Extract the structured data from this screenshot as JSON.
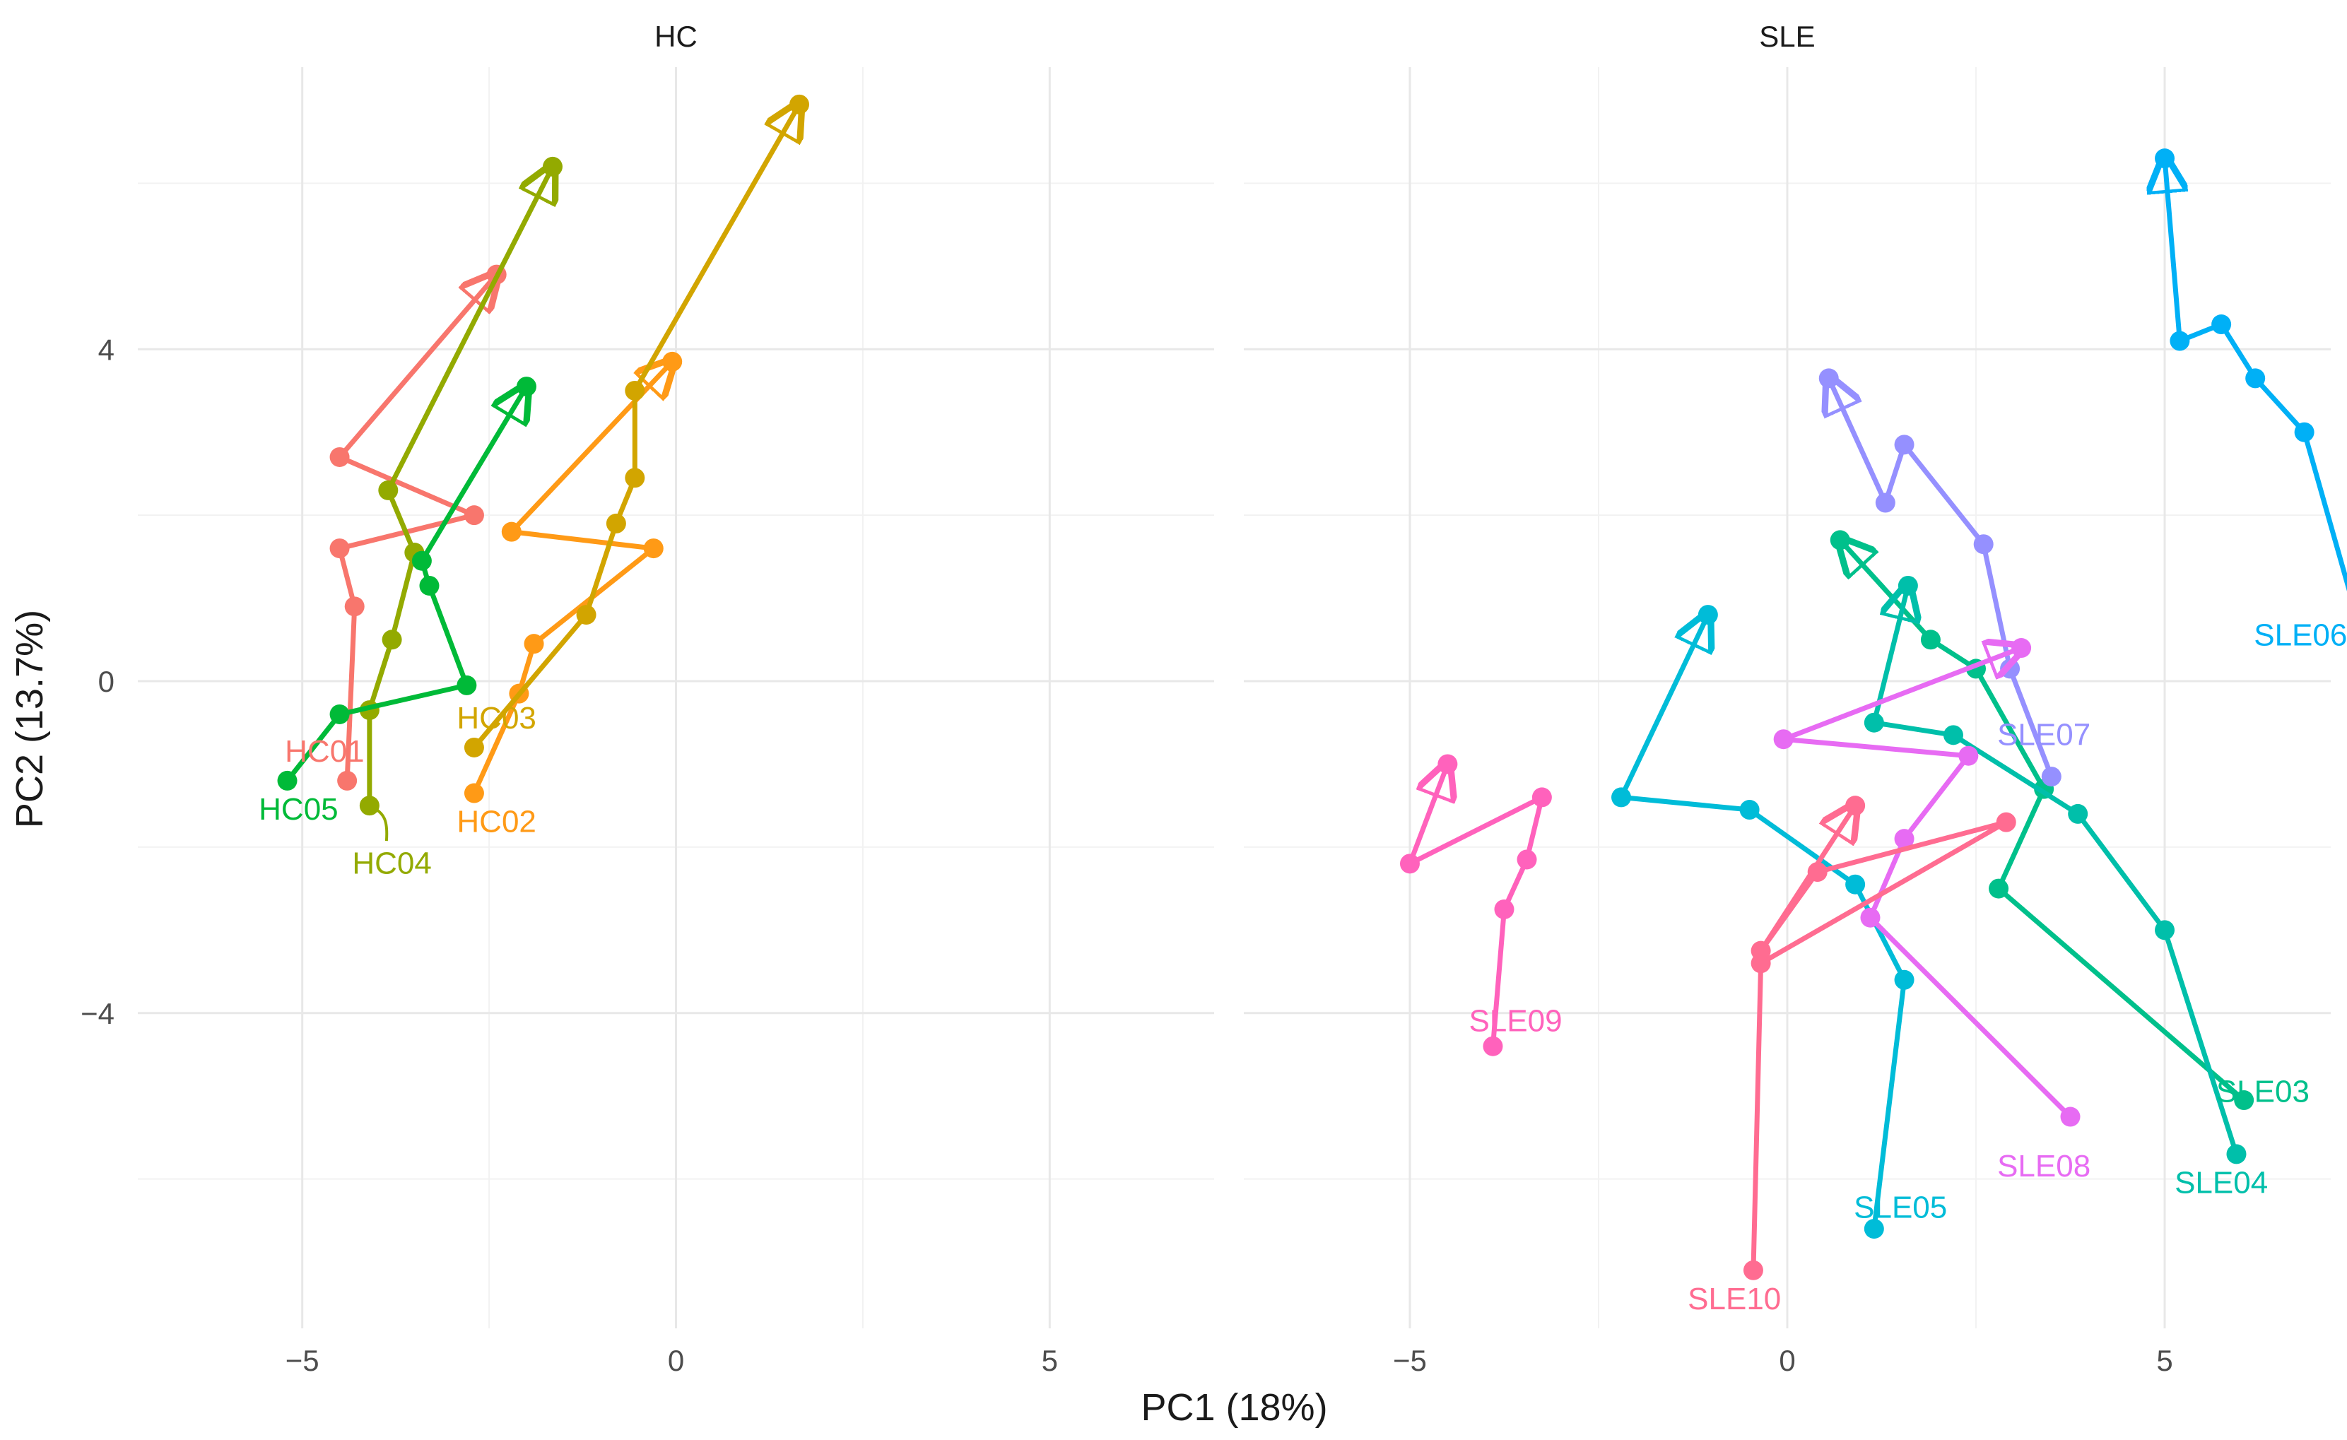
{
  "chart_data": {
    "type": "line",
    "xlabel": "PC1 (18%)",
    "ylabel": "PC2 (13.7%)",
    "xlim": [
      -7.2,
      7.2
    ],
    "ylim": [
      -7.8,
      7.4
    ],
    "x_ticks": [
      -5,
      0,
      5
    ],
    "y_ticks": [
      -4,
      0,
      4
    ],
    "grid": true,
    "legend": "none",
    "panels": [
      {
        "name": "HC",
        "series": [
          {
            "name": "HC01",
            "color": "#F8766D",
            "label_at": [
              -4.7,
              -0.85
            ],
            "points": [
              [
                -4.4,
                -1.2
              ],
              [
                -4.3,
                0.9
              ],
              [
                -4.5,
                1.6
              ],
              [
                -2.7,
                2.0
              ],
              [
                -4.5,
                2.7
              ],
              [
                -2.4,
                4.9
              ]
            ]
          },
          {
            "name": "HC02",
            "color": "#FF9A16",
            "label_at": [
              -2.4,
              -1.7
            ],
            "points": [
              [
                -2.7,
                -1.35
              ],
              [
                -2.1,
                -0.15
              ],
              [
                -1.9,
                0.45
              ],
              [
                -0.3,
                1.6
              ],
              [
                -2.2,
                1.8
              ],
              [
                -0.05,
                3.85
              ]
            ]
          },
          {
            "name": "HC03",
            "color": "#D2A500",
            "label_at": [
              -2.4,
              -0.45
            ],
            "points": [
              [
                -2.7,
                -0.8
              ],
              [
                -1.2,
                0.8
              ],
              [
                -0.8,
                1.9
              ],
              [
                -0.55,
                2.45
              ],
              [
                -0.55,
                3.5
              ],
              [
                1.65,
                6.95
              ]
            ]
          },
          {
            "name": "HC04",
            "color": "#93AA00",
            "label_at": [
              -3.8,
              -2.2
            ],
            "curl": true,
            "points": [
              [
                -4.1,
                -1.5
              ],
              [
                -4.1,
                -0.35
              ],
              [
                -3.8,
                0.5
              ],
              [
                -3.5,
                1.55
              ],
              [
                -3.85,
                2.3
              ],
              [
                -1.65,
                6.2
              ]
            ]
          },
          {
            "name": "HC05",
            "color": "#00BA38",
            "label_at": [
              -5.05,
              -1.55
            ],
            "points": [
              [
                -5.2,
                -1.2
              ],
              [
                -4.5,
                -0.4
              ],
              [
                -2.8,
                -0.05
              ],
              [
                -3.3,
                1.15
              ],
              [
                -3.4,
                1.45
              ],
              [
                -2.0,
                3.55
              ]
            ]
          }
        ]
      },
      {
        "name": "SLE",
        "series": [
          {
            "name": "SLE03",
            "color": "#00C08B",
            "label_at": [
              6.3,
              -4.95
            ],
            "points": [
              [
                6.05,
                -5.05
              ],
              [
                2.8,
                -2.5
              ],
              [
                3.4,
                -1.3
              ],
              [
                2.5,
                0.15
              ],
              [
                1.9,
                0.5
              ],
              [
                0.7,
                1.7
              ]
            ]
          },
          {
            "name": "SLE04",
            "color": "#00BFAA",
            "label_at": [
              5.75,
              -6.05
            ],
            "points": [
              [
                5.95,
                -5.7
              ],
              [
                5.0,
                -3.0
              ],
              [
                3.85,
                -1.6
              ],
              [
                2.2,
                -0.65
              ],
              [
                1.15,
                -0.5
              ],
              [
                1.6,
                1.15
              ]
            ]
          },
          {
            "name": "SLE05",
            "color": "#00BCD8",
            "label_at": [
              1.5,
              -6.35
            ],
            "points": [
              [
                1.15,
                -6.6
              ],
              [
                1.55,
                -3.6
              ],
              [
                0.9,
                -2.45
              ],
              [
                -0.5,
                -1.55
              ],
              [
                -2.2,
                -1.4
              ],
              [
                -1.05,
                0.8
              ]
            ]
          },
          {
            "name": "SLE06",
            "color": "#00B0F6",
            "label_at": [
              6.8,
              0.55
            ],
            "points": [
              [
                7.6,
                0.6
              ],
              [
                6.85,
                3.0
              ],
              [
                6.2,
                3.65
              ],
              [
                5.75,
                4.3
              ],
              [
                5.2,
                4.1
              ],
              [
                5.0,
                6.3
              ]
            ]
          },
          {
            "name": "SLE07",
            "color": "#9590FF",
            "label_at": [
              3.4,
              -0.65
            ],
            "points": [
              [
                3.5,
                -1.15
              ],
              [
                2.95,
                0.15
              ],
              [
                2.6,
                1.65
              ],
              [
                1.55,
                2.85
              ],
              [
                1.3,
                2.15
              ],
              [
                0.55,
                3.65
              ]
            ]
          },
          {
            "name": "SLE08",
            "color": "#E76BF3",
            "label_at": [
              3.4,
              -5.85
            ],
            "points": [
              [
                3.75,
                -5.25
              ],
              [
                1.1,
                -2.85
              ],
              [
                1.55,
                -1.9
              ],
              [
                2.4,
                -0.9
              ],
              [
                -0.05,
                -0.7
              ],
              [
                3.1,
                0.4
              ]
            ]
          },
          {
            "name": "SLE09",
            "color": "#FF62BC",
            "label_at": [
              -3.6,
              -4.1
            ],
            "points": [
              [
                -3.9,
                -4.4
              ],
              [
                -3.75,
                -2.75
              ],
              [
                -3.45,
                -2.15
              ],
              [
                -3.25,
                -1.4
              ],
              [
                -5.0,
                -2.2
              ],
              [
                -4.5,
                -1.0
              ]
            ]
          },
          {
            "name": "SLE10",
            "color": "#FF6C91",
            "label_at": [
              -0.7,
              -7.45
            ],
            "points": [
              [
                -0.45,
                -7.1
              ],
              [
                -0.35,
                -3.4
              ],
              [
                2.9,
                -1.7
              ],
              [
                0.4,
                -2.3
              ],
              [
                -0.35,
                -3.25
              ],
              [
                0.9,
                -1.5
              ]
            ]
          }
        ]
      }
    ]
  }
}
